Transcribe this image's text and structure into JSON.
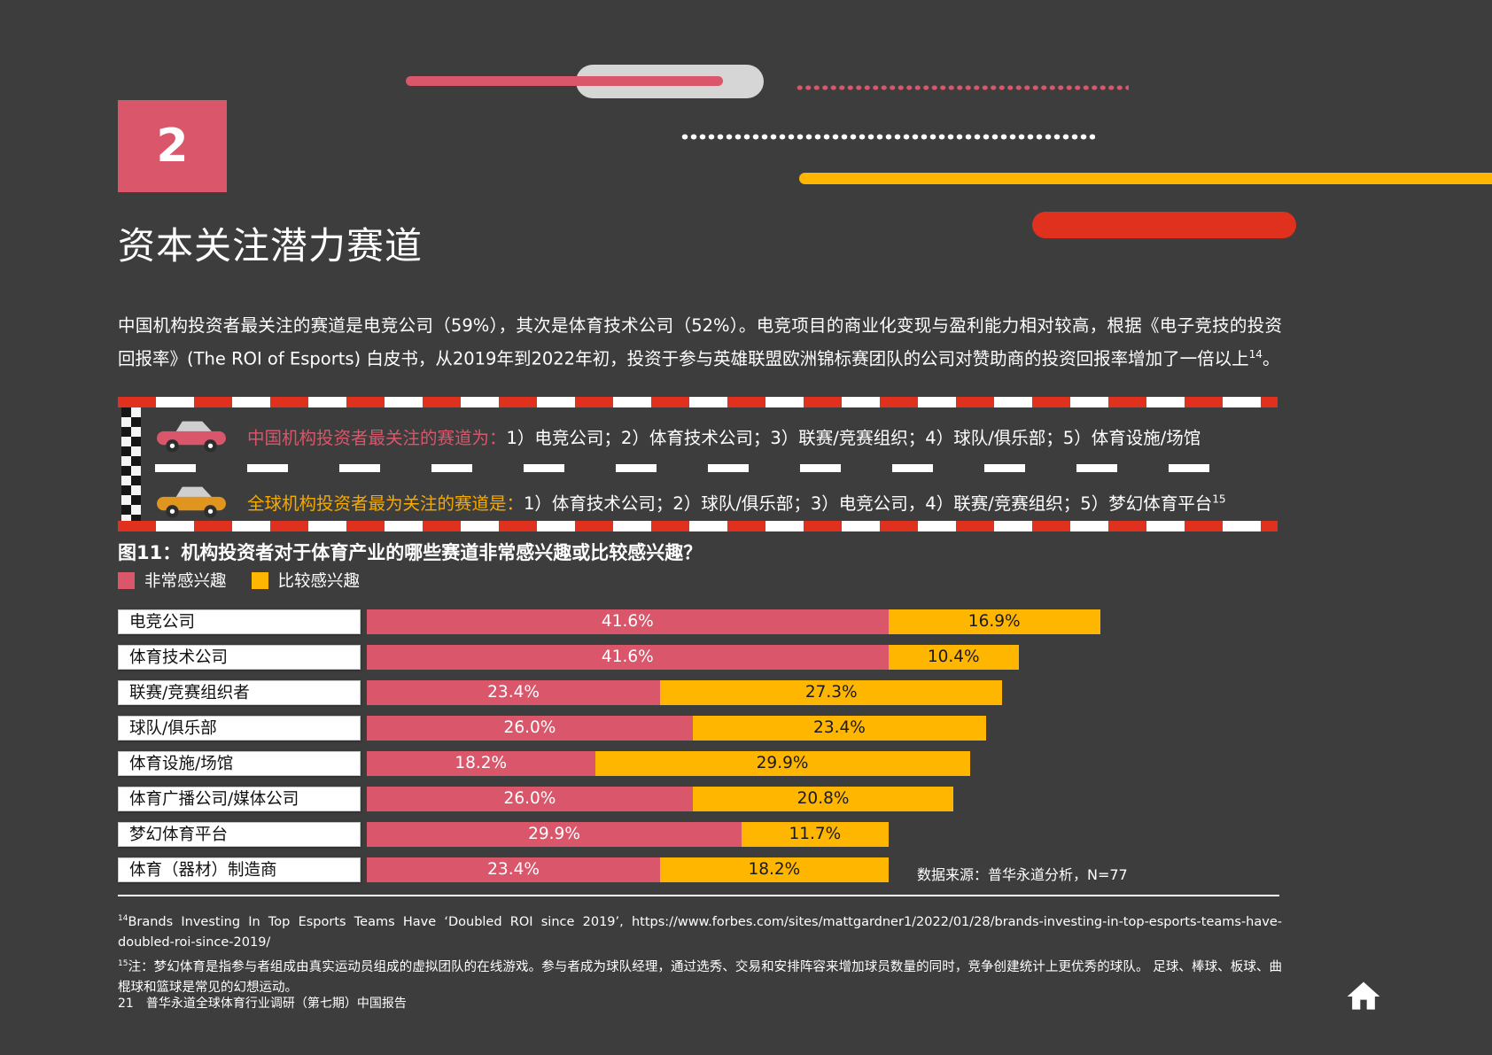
{
  "colors": {
    "background": "#3d3d3d",
    "rose": "#d9566b",
    "yellow": "#ffb600",
    "red": "#e0301e",
    "orange_text": "#f5aa00",
    "orange_car": "#e0961e",
    "light_gray": "#d6d6d6",
    "white": "#ffffff"
  },
  "header": {
    "section_number": "2",
    "title": "资本关注潜力赛道"
  },
  "intro": {
    "body": "中国机构投资者最关注的赛道是电竞公司（59%），其次是体育技术公司（52%）。电竞项目的商业化变现与盈利能力相对较高，根据《电子竞技的投资回报率》(The ROI of Esports) 白皮书，从2019年到2022年初，投资于参与英雄联盟欧洲锦标赛团队的公司对赞助商的投资回报率增加了一倍以上",
    "sup": "14",
    "tail": "。"
  },
  "highlight_box": {
    "china_row": {
      "lead": "中国机构投资者最关注的赛道为：",
      "rest": "1）电竞公司；2）体育技术公司；3）联赛/竞赛组织；4）球队/俱乐部；5）体育设施/场馆"
    },
    "global_row": {
      "lead": "全球机构投资者最为关注的赛道是：",
      "rest": "1）体育技术公司；2）球队/俱乐部；3）电竞公司，4）联赛/竞赛组织；5）梦幻体育平台",
      "sup": "15"
    }
  },
  "chart_data": {
    "type": "bar",
    "orientation": "horizontal-stacked",
    "title": "图11：机构投资者对于体育产业的哪些赛道非常感兴趣或比较感兴趣？",
    "categories": [
      "电竞公司",
      "体育技术公司",
      "联赛/竞赛组织者",
      "球队/俱乐部",
      "体育设施/场馆",
      "体育广播公司/媒体公司",
      "梦幻体育平台",
      "体育（器材）制造商"
    ],
    "series": [
      {
        "name": "非常感兴趣",
        "color": "#d9566b",
        "text_color": "#ffffff",
        "values": [
          41.6,
          41.6,
          23.4,
          26.0,
          18.2,
          26.0,
          29.9,
          23.4
        ]
      },
      {
        "name": "比较感兴趣",
        "color": "#ffb600",
        "text_color": "#1a1a1a",
        "values": [
          16.9,
          10.4,
          27.3,
          23.4,
          29.9,
          20.8,
          11.7,
          18.2
        ]
      }
    ],
    "unit": "%",
    "xlim": [
      0,
      60
    ],
    "grid": false,
    "legend_position": "top-left",
    "source": "数据来源：普华永道分析，N=77"
  },
  "footnotes": [
    {
      "marker": "14",
      "text": "Brands Investing In Top Esports Teams Have ‘Doubled ROI since 2019’, https://www.forbes.com/sites/mattgardner1/2022/01/28/brands-investing-in-top-esports-teams-have-doubled-roi-since-2019/"
    },
    {
      "marker": "15",
      "text": "注：梦幻体育是指参与者组成由真实运动员组成的虚拟团队的在线游戏。参与者成为球队经理，通过选秀、交易和安排阵容来增加球员数量的同时，竞争创建统计上更优秀的球队。 足球、棒球、板球、曲棍球和篮球是常见的幻想运动。"
    }
  ],
  "footer": {
    "page_number": "21",
    "report_title": "普华永道全球体育行业调研（第七期）中国报告"
  },
  "icons": {
    "home": "home-icon",
    "car_china": "car-icon",
    "car_global": "car-icon",
    "checkered_flag": "checkered-flag-pattern"
  }
}
